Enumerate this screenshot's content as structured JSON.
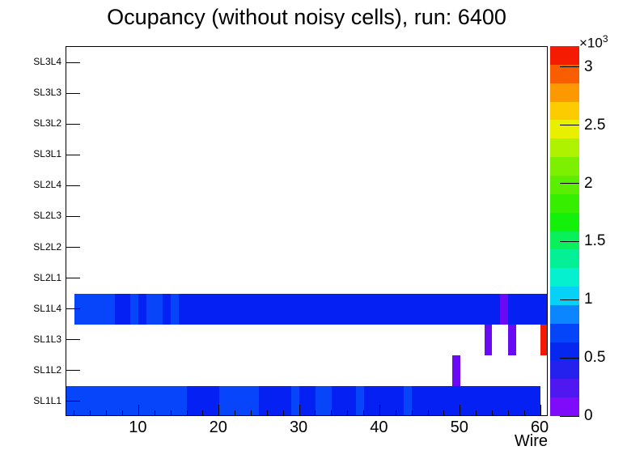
{
  "title": "Ocupancy (without noisy cells), run: 6400",
  "axes": {
    "x_title": "Wire",
    "x_min": 1,
    "x_max": 61,
    "x_major_ticks": [
      10,
      20,
      30,
      40,
      50,
      60
    ],
    "x_minor_step": 2,
    "row_labels_top_to_bottom": [
      "SL3L4",
      "SL3L3",
      "SL3L2",
      "SL3L1",
      "SL2L4",
      "SL2L3",
      "SL2L2",
      "SL2L1",
      "SL1L4",
      "SL1L3",
      "SL1L2",
      "SL1L1"
    ],
    "z_scale_base": "×10",
    "z_scale_exponent": "3",
    "z_ticks": [
      {
        "value": 0,
        "label": "0"
      },
      {
        "value": 0.5,
        "label": "0.5"
      },
      {
        "value": 1,
        "label": "1"
      },
      {
        "value": 1.5,
        "label": "1.5"
      },
      {
        "value": 2,
        "label": "2"
      },
      {
        "value": 2.5,
        "label": "2.5"
      },
      {
        "value": 3,
        "label": "3"
      }
    ],
    "z_axis_max": 3.18
  },
  "palette_bottom_to_top": [
    "#7E0CFA",
    "#5018F0",
    "#2420EE",
    "#0527F0",
    "#0545FA",
    "#0B86FE",
    "#06D2F8",
    "#04F0CE",
    "#03F096",
    "#0AF05A",
    "#13F00A",
    "#35EE00",
    "#5CEE00",
    "#7DF000",
    "#AFF200",
    "#E8F000",
    "#FCCC00",
    "#FC9800",
    "#F85E00",
    "#F51A02"
  ],
  "value_colors": {
    "low_blue": "#0420F2",
    "mid_blue": "#0645FA",
    "violet": "#6A0AF5",
    "red": "#F51A02"
  },
  "chart_data": {
    "type": "heatmap",
    "title": "Ocupancy (without noisy cells), run: 6400",
    "xlabel": "Wire",
    "x_range": [
      1,
      60
    ],
    "z_range": [
      0,
      3180
    ],
    "z_unit_scale": 1000,
    "legend_position": "right-colorbar",
    "rows_top_to_bottom": [
      {
        "label": "SL3L4",
        "segments": []
      },
      {
        "label": "SL3L3",
        "segments": []
      },
      {
        "label": "SL3L2",
        "segments": []
      },
      {
        "label": "SL3L1",
        "segments": []
      },
      {
        "label": "SL2L4",
        "segments": []
      },
      {
        "label": "SL2L3",
        "segments": []
      },
      {
        "label": "SL2L2",
        "segments": []
      },
      {
        "label": "SL2L1",
        "segments": []
      },
      {
        "label": "SL1L4",
        "segments": [
          {
            "wire_from": 2,
            "wire_to": 6,
            "color": "mid_blue",
            "approx_value": 700
          },
          {
            "wire_from": 7,
            "wire_to": 8,
            "color": "low_blue",
            "approx_value": 500
          },
          {
            "wire_from": 9,
            "wire_to": 9,
            "color": "mid_blue",
            "approx_value": 700
          },
          {
            "wire_from": 10,
            "wire_to": 10,
            "color": "low_blue",
            "approx_value": 500
          },
          {
            "wire_from": 11,
            "wire_to": 12,
            "color": "mid_blue",
            "approx_value": 700
          },
          {
            "wire_from": 13,
            "wire_to": 13,
            "color": "low_blue",
            "approx_value": 500
          },
          {
            "wire_from": 14,
            "wire_to": 14,
            "color": "mid_blue",
            "approx_value": 700
          },
          {
            "wire_from": 15,
            "wire_to": 54,
            "color": "low_blue",
            "approx_value": 500
          },
          {
            "wire_from": 55,
            "wire_to": 55,
            "color": "violet",
            "approx_value": 150
          },
          {
            "wire_from": 56,
            "wire_to": 60,
            "color": "low_blue",
            "approx_value": 500
          }
        ]
      },
      {
        "label": "SL1L3",
        "segments": [
          {
            "wire_from": 53,
            "wire_to": 53,
            "color": "violet",
            "approx_value": 150
          },
          {
            "wire_from": 56,
            "wire_to": 56,
            "color": "violet",
            "approx_value": 150
          },
          {
            "wire_from": 60,
            "wire_to": 60,
            "color": "red",
            "approx_value": 3100
          }
        ]
      },
      {
        "label": "SL1L2",
        "segments": [
          {
            "wire_from": 49,
            "wire_to": 49,
            "color": "violet",
            "approx_value": 150
          }
        ]
      },
      {
        "label": "SL1L1",
        "segments": [
          {
            "wire_from": 1,
            "wire_to": 15,
            "color": "mid_blue",
            "approx_value": 700
          },
          {
            "wire_from": 16,
            "wire_to": 19,
            "color": "low_blue",
            "approx_value": 500
          },
          {
            "wire_from": 20,
            "wire_to": 24,
            "color": "mid_blue",
            "approx_value": 700
          },
          {
            "wire_from": 25,
            "wire_to": 28,
            "color": "low_blue",
            "approx_value": 500
          },
          {
            "wire_from": 29,
            "wire_to": 29,
            "color": "mid_blue",
            "approx_value": 700
          },
          {
            "wire_from": 30,
            "wire_to": 31,
            "color": "low_blue",
            "approx_value": 500
          },
          {
            "wire_from": 32,
            "wire_to": 33,
            "color": "mid_blue",
            "approx_value": 700
          },
          {
            "wire_from": 34,
            "wire_to": 36,
            "color": "low_blue",
            "approx_value": 500
          },
          {
            "wire_from": 37,
            "wire_to": 37,
            "color": "mid_blue",
            "approx_value": 700
          },
          {
            "wire_from": 38,
            "wire_to": 42,
            "color": "low_blue",
            "approx_value": 500
          },
          {
            "wire_from": 43,
            "wire_to": 43,
            "color": "mid_blue",
            "approx_value": 700
          },
          {
            "wire_from": 44,
            "wire_to": 59,
            "color": "low_blue",
            "approx_value": 500
          }
        ]
      }
    ]
  }
}
